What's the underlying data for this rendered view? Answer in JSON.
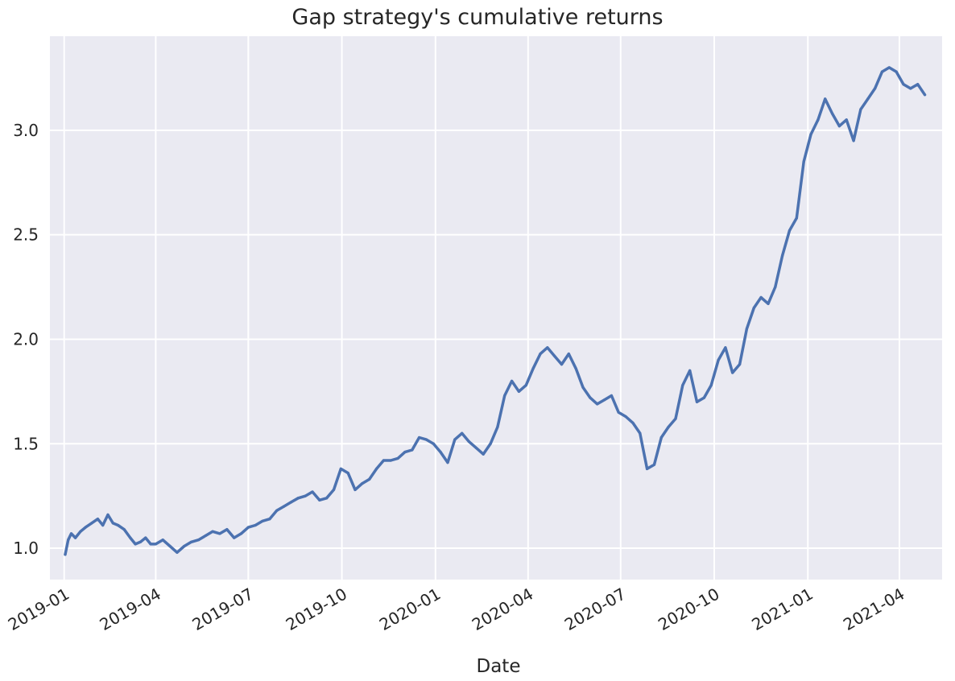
{
  "chart_data": {
    "type": "line",
    "title": "Gap strategy's cumulative returns",
    "xlabel": "Date",
    "ylabel": "",
    "ylim": [
      0.85,
      3.45
    ],
    "xlim": [
      "2018-12-18",
      "2021-05-13"
    ],
    "grid": true,
    "background": "#eaeaf2",
    "line_color": "#4c72b0",
    "x_ticks": [
      "2019-01",
      "2019-04",
      "2019-07",
      "2019-10",
      "2020-01",
      "2020-04",
      "2020-07",
      "2020-10",
      "2021-01",
      "2021-04"
    ],
    "y_ticks": [
      "1.0",
      "1.5",
      "2.0",
      "2.5",
      "3.0"
    ],
    "series": [
      {
        "x": [
          "2019-01-02",
          "2019-01-05",
          "2019-01-08",
          "2019-01-12",
          "2019-01-17",
          "2019-01-22",
          "2019-01-28",
          "2019-02-03",
          "2019-02-08",
          "2019-02-13",
          "2019-02-18",
          "2019-02-23",
          "2019-03-01",
          "2019-03-07",
          "2019-03-12",
          "2019-03-17",
          "2019-03-22",
          "2019-03-27",
          "2019-04-01",
          "2019-04-08",
          "2019-04-15",
          "2019-04-22",
          "2019-04-29",
          "2019-05-06",
          "2019-05-13",
          "2019-05-20",
          "2019-05-27",
          "2019-06-03",
          "2019-06-10",
          "2019-06-17",
          "2019-06-24",
          "2019-07-01",
          "2019-07-08",
          "2019-07-15",
          "2019-07-22",
          "2019-07-29",
          "2019-08-05",
          "2019-08-12",
          "2019-08-19",
          "2019-08-26",
          "2019-09-02",
          "2019-09-09",
          "2019-09-16",
          "2019-09-23",
          "2019-09-30",
          "2019-10-07",
          "2019-10-14",
          "2019-10-21",
          "2019-10-28",
          "2019-11-04",
          "2019-11-11",
          "2019-11-18",
          "2019-11-25",
          "2019-12-02",
          "2019-12-09",
          "2019-12-16",
          "2019-12-23",
          "2019-12-30",
          "2020-01-06",
          "2020-01-13",
          "2020-01-20",
          "2020-01-27",
          "2020-02-03",
          "2020-02-10",
          "2020-02-17",
          "2020-02-24",
          "2020-03-02",
          "2020-03-09",
          "2020-03-16",
          "2020-03-23",
          "2020-03-30",
          "2020-04-06",
          "2020-04-13",
          "2020-04-20",
          "2020-04-27",
          "2020-05-04",
          "2020-05-11",
          "2020-05-18",
          "2020-05-25",
          "2020-06-01",
          "2020-06-08",
          "2020-06-15",
          "2020-06-22",
          "2020-06-29",
          "2020-07-06",
          "2020-07-13",
          "2020-07-20",
          "2020-07-27",
          "2020-08-03",
          "2020-08-10",
          "2020-08-17",
          "2020-08-24",
          "2020-08-31",
          "2020-09-07",
          "2020-09-14",
          "2020-09-21",
          "2020-09-28",
          "2020-10-05",
          "2020-10-12",
          "2020-10-19",
          "2020-10-26",
          "2020-11-02",
          "2020-11-09",
          "2020-11-16",
          "2020-11-23",
          "2020-11-30",
          "2020-12-07",
          "2020-12-14",
          "2020-12-21",
          "2020-12-28",
          "2021-01-04",
          "2021-01-11",
          "2021-01-18",
          "2021-01-25",
          "2021-02-01",
          "2021-02-08",
          "2021-02-15",
          "2021-02-22",
          "2021-03-01",
          "2021-03-08",
          "2021-03-15",
          "2021-03-22",
          "2021-03-29",
          "2021-04-05",
          "2021-04-12",
          "2021-04-19",
          "2021-04-26"
        ],
        "values": [
          0.97,
          1.04,
          1.07,
          1.05,
          1.08,
          1.1,
          1.12,
          1.14,
          1.11,
          1.16,
          1.12,
          1.11,
          1.09,
          1.05,
          1.02,
          1.03,
          1.05,
          1.02,
          1.02,
          1.04,
          1.01,
          0.98,
          1.01,
          1.03,
          1.04,
          1.06,
          1.08,
          1.07,
          1.09,
          1.05,
          1.07,
          1.1,
          1.11,
          1.13,
          1.14,
          1.18,
          1.2,
          1.22,
          1.24,
          1.25,
          1.27,
          1.23,
          1.24,
          1.28,
          1.38,
          1.36,
          1.28,
          1.31,
          1.33,
          1.38,
          1.42,
          1.42,
          1.43,
          1.46,
          1.47,
          1.53,
          1.52,
          1.5,
          1.46,
          1.41,
          1.52,
          1.55,
          1.51,
          1.48,
          1.45,
          1.5,
          1.58,
          1.73,
          1.8,
          1.75,
          1.78,
          1.86,
          1.93,
          1.96,
          1.92,
          1.88,
          1.93,
          1.86,
          1.77,
          1.72,
          1.69,
          1.71,
          1.73,
          1.65,
          1.63,
          1.6,
          1.55,
          1.38,
          1.4,
          1.53,
          1.58,
          1.62,
          1.78,
          1.85,
          1.7,
          1.72,
          1.78,
          1.9,
          1.96,
          1.84,
          1.88,
          2.05,
          2.15,
          2.2,
          2.17,
          2.25,
          2.4,
          2.52,
          2.58,
          2.85,
          2.98,
          3.05,
          3.15,
          3.08,
          3.02,
          3.05,
          2.95,
          3.1,
          3.15,
          3.2,
          3.28,
          3.3,
          3.28,
          3.22,
          3.2,
          3.22,
          3.17
        ]
      }
    ]
  }
}
